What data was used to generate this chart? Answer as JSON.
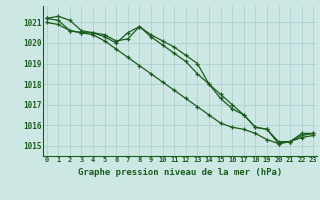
{
  "title": "Graphe pression niveau de la mer (hPa)",
  "bg_color": "#cde8e4",
  "grid_color": "#aacccc",
  "line_color": "#1a5c1a",
  "x_labels": [
    "0",
    "1",
    "2",
    "3",
    "4",
    "5",
    "6",
    "7",
    "8",
    "9",
    "10",
    "11",
    "12",
    "13",
    "14",
    "15",
    "16",
    "17",
    "18",
    "19",
    "20",
    "21",
    "22",
    "23"
  ],
  "ylim": [
    1014.5,
    1021.8
  ],
  "yticks": [
    1015,
    1016,
    1017,
    1018,
    1019,
    1020,
    1021
  ],
  "series1": [
    1021.2,
    1021.3,
    1021.1,
    1020.6,
    1020.5,
    1020.4,
    1020.1,
    1020.2,
    1020.8,
    1020.4,
    1020.1,
    1019.8,
    1019.4,
    1019.0,
    1018.0,
    1017.5,
    1017.0,
    1016.5,
    1015.9,
    1015.8,
    1015.2,
    1015.2,
    1015.6,
    1015.6
  ],
  "series2": [
    1021.2,
    1021.1,
    1020.6,
    1020.5,
    1020.5,
    1020.3,
    1020.0,
    1020.5,
    1020.8,
    1020.3,
    1019.9,
    1019.5,
    1019.1,
    1018.5,
    1018.0,
    1017.3,
    1016.8,
    1016.5,
    1015.9,
    1015.8,
    1015.1,
    1015.2,
    1015.4,
    1015.5
  ],
  "series3": [
    1021.0,
    1020.9,
    1020.6,
    1020.5,
    1020.4,
    1020.1,
    1019.7,
    1019.3,
    1018.9,
    1018.5,
    1018.1,
    1017.7,
    1017.3,
    1016.9,
    1016.5,
    1016.1,
    1015.9,
    1015.8,
    1015.6,
    1015.3,
    1015.1,
    1015.2,
    1015.5,
    1015.6
  ],
  "marker": "+"
}
